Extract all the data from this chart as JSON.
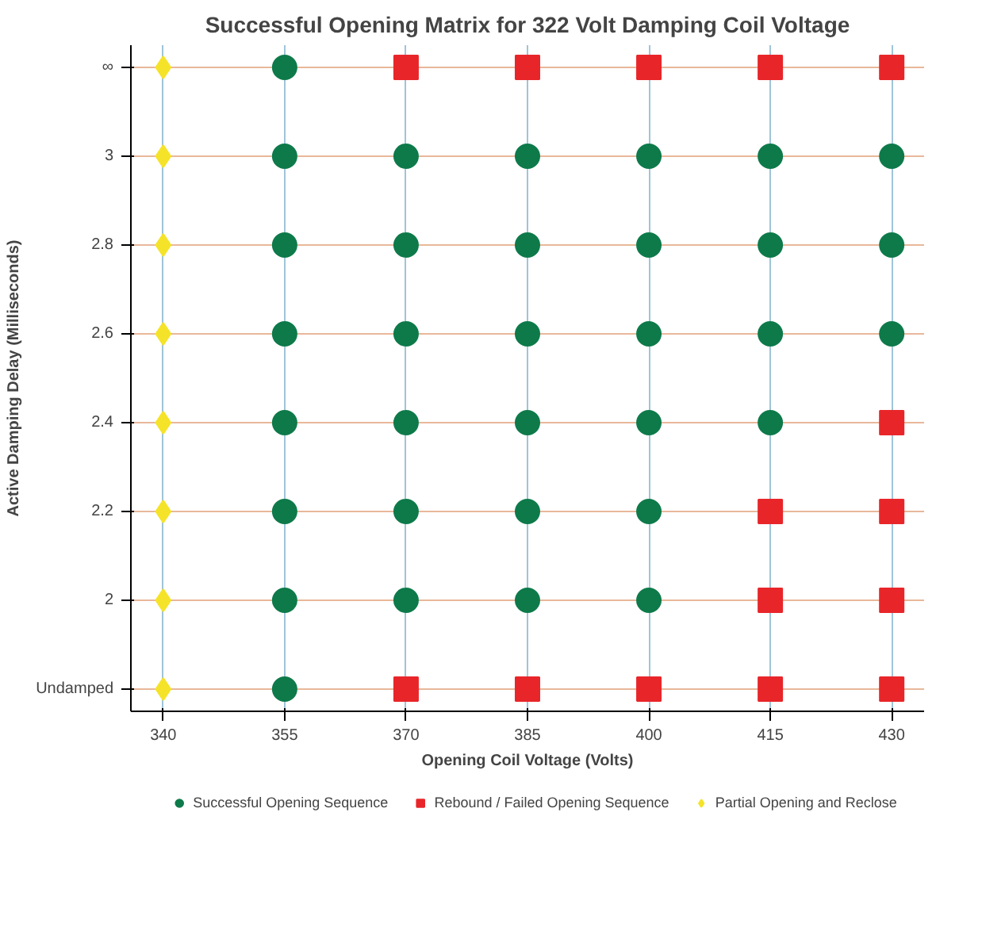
{
  "chart_data": {
    "type": "scatter",
    "title": "Successful Opening Matrix for 322 Volt Damping Coil Voltage",
    "xlabel": "Opening Coil Voltage (Volts)",
    "ylabel": "Active Damping Delay (Milliseconds)",
    "xlim": [
      336,
      434
    ],
    "ylim": [
      1.75,
      3.25
    ],
    "xticks": [
      340,
      355,
      370,
      385,
      400,
      415,
      430
    ],
    "yticks": [
      {
        "value": 1.8,
        "label": "Undamped"
      },
      2,
      2.2,
      2.4,
      2.6,
      2.8,
      3,
      {
        "value": 3.2,
        "label": "∞"
      }
    ],
    "grid": true,
    "legend": "bottom",
    "series": [
      {
        "name": "Successful Opening Sequence",
        "color": "#0e7a4a",
        "marker": "circle",
        "x": [
          355,
          355,
          355,
          355,
          355,
          355,
          355,
          355,
          370,
          370,
          370,
          370,
          370,
          370,
          385,
          385,
          385,
          385,
          385,
          385,
          400,
          400,
          400,
          400,
          400,
          400,
          415,
          415,
          415,
          415,
          430,
          430,
          430
        ],
        "values": [
          1.8,
          2,
          2.2,
          2.4,
          2.6,
          2.8,
          3,
          3.2,
          2,
          2.2,
          2.4,
          2.6,
          2.8,
          3,
          2,
          2.2,
          2.4,
          2.6,
          2.8,
          3,
          2,
          2.2,
          2.4,
          2.6,
          2.8,
          3,
          2.4,
          2.6,
          2.8,
          3,
          2.6,
          2.8,
          3
        ]
      },
      {
        "name": "Rebound / Failed Opening Sequence",
        "color": "#e8262a",
        "marker": "square",
        "x": [
          370,
          370,
          385,
          385,
          400,
          400,
          415,
          415,
          415,
          415,
          430,
          430,
          430,
          430,
          430
        ],
        "values": [
          1.8,
          3.2,
          1.8,
          3.2,
          1.8,
          3.2,
          1.8,
          2,
          2.2,
          3.2,
          1.8,
          2,
          2.2,
          2.4,
          3.2
        ]
      },
      {
        "name": "Partial Opening and Reclose",
        "color": "#f5e32a",
        "marker": "diamond",
        "x": [
          340,
          340,
          340,
          340,
          340,
          340,
          340,
          340
        ],
        "values": [
          1.8,
          2,
          2.2,
          2.4,
          2.6,
          2.8,
          3,
          3.2
        ]
      }
    ]
  }
}
